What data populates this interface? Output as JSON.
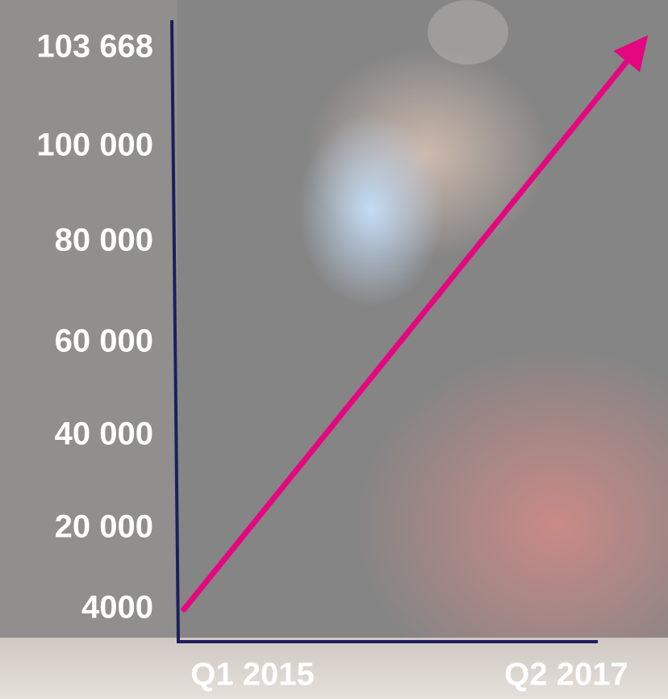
{
  "chart_data": {
    "type": "line",
    "categories": [
      "Q1 2015",
      "Q2 2017"
    ],
    "values": [
      4000,
      103668
    ],
    "color": "#e5077f",
    "axis_color": "#1e1e5c",
    "yticks": [
      4000,
      {
        "value": 20000,
        "label": "20 000"
      },
      {
        "value": 40000,
        "label": "40 000"
      },
      {
        "value": 60000,
        "label": "60 000"
      },
      {
        "value": 80000,
        "label": "80 000"
      },
      {
        "value": 100000,
        "label": "100 000"
      },
      {
        "value": 103668,
        "label": "103 668"
      }
    ]
  }
}
